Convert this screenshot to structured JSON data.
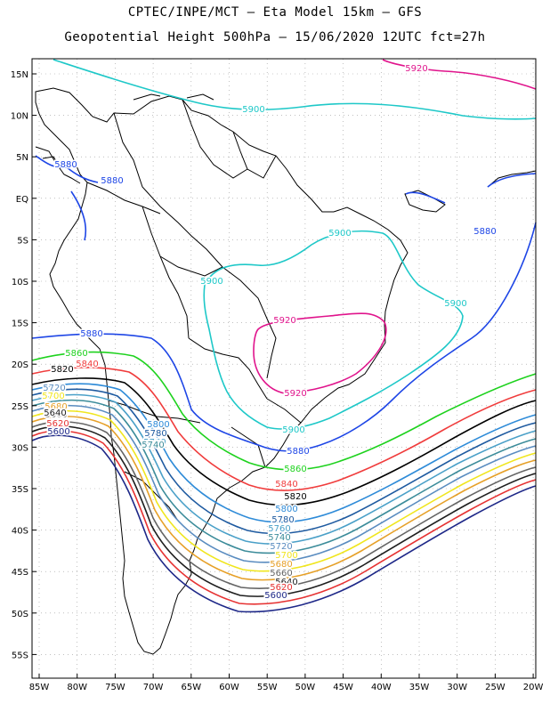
{
  "header": {
    "line1": "CPTEC/INPE/MCT –  Eta Model 15km – GFS",
    "line2": "Geopotential Height 500hPa – 15/06/2020 12UTC fct=27h"
  },
  "axes": {
    "lat_labels": [
      "15N",
      "10N",
      "5N",
      "EQ",
      "5S",
      "10S",
      "15S",
      "20S",
      "25S",
      "30S",
      "35S",
      "40S",
      "45S",
      "50S",
      "55S"
    ],
    "lon_labels": [
      "85W",
      "80W",
      "75W",
      "70W",
      "65W",
      "60W",
      "55W",
      "50W",
      "45W",
      "40W",
      "35W",
      "30W",
      "25W",
      "20W"
    ]
  },
  "contours": [
    {
      "value": "5920",
      "color": "#e0148c"
    },
    {
      "value": "5900",
      "color": "#1ec8c8"
    },
    {
      "value": "5880",
      "color": "#1e46e6"
    },
    {
      "value": "5860",
      "color": "#1ed21e"
    },
    {
      "value": "5840",
      "color": "#f03c3c"
    },
    {
      "value": "5820",
      "color": "#000000"
    },
    {
      "value": "5800",
      "color": "#2e8bd8"
    },
    {
      "value": "5780",
      "color": "#1e5aa0"
    },
    {
      "value": "5760",
      "color": "#4aa0c8"
    },
    {
      "value": "5740",
      "color": "#3c8c9a"
    },
    {
      "value": "5720",
      "color": "#5a8cc0"
    },
    {
      "value": "5700",
      "color": "#f0e61e"
    },
    {
      "value": "5680",
      "color": "#e6a028"
    },
    {
      "value": "5660",
      "color": "#646464"
    },
    {
      "value": "5640",
      "color": "#1e1e1e"
    },
    {
      "value": "5620",
      "color": "#e63232"
    },
    {
      "value": "5600",
      "color": "#1e2888"
    }
  ],
  "colors": {
    "grid": "#9a9a9a",
    "coast": "#000000",
    "frame": "#000000"
  }
}
